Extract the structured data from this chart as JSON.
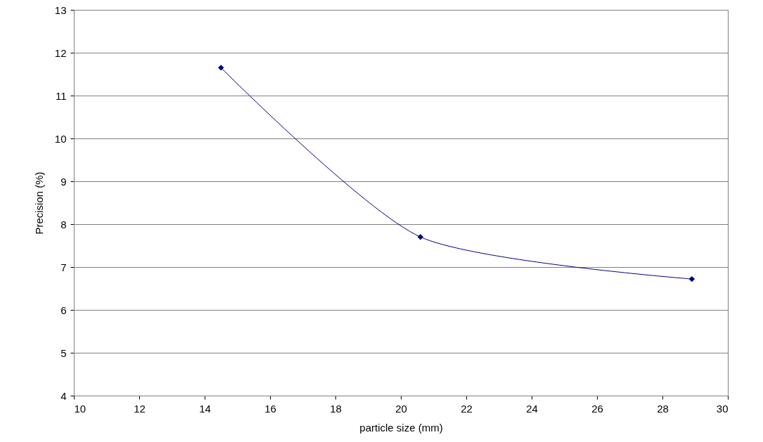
{
  "chart_data": {
    "type": "line",
    "xlabel": "particle size (mm)",
    "ylabel": "Precision (%)",
    "x": [
      14.5,
      20.6,
      28.9
    ],
    "series": [
      {
        "color": "#000080",
        "values": [
          11.65,
          7.7,
          6.72
        ]
      }
    ],
    "xlim": [
      10,
      30
    ],
    "xticks": [
      10,
      12,
      14,
      16,
      18,
      20,
      22,
      24,
      26,
      28,
      30
    ],
    "ylim": [
      4,
      13
    ],
    "yticks": [
      4,
      5,
      6,
      7,
      8,
      9,
      10,
      11,
      12,
      13
    ],
    "grid": "y",
    "marker": "diamond",
    "line_style": "solid"
  }
}
